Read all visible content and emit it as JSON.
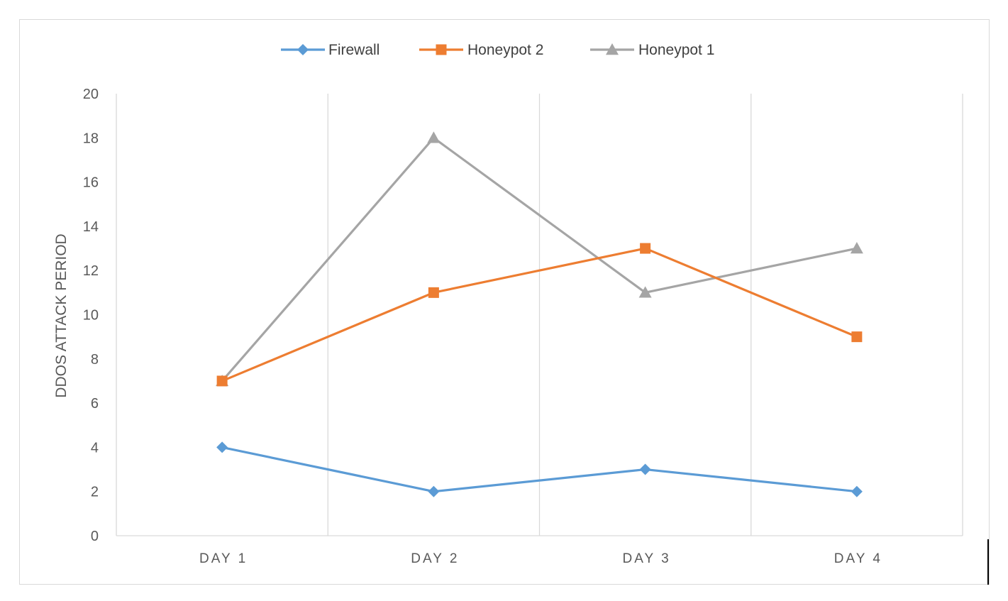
{
  "chart_data": {
    "type": "line",
    "title": "",
    "xlabel": "",
    "ylabel": "DDOS ATTACK PERIOD",
    "categories": [
      "DAY 1",
      "DAY 2",
      "DAY 3",
      "DAY 4"
    ],
    "ylim": [
      0,
      20
    ],
    "yticks": [
      0,
      2,
      4,
      6,
      8,
      10,
      12,
      14,
      16,
      18,
      20
    ],
    "grid": "vertical",
    "legend_position": "top",
    "series": [
      {
        "name": "Firewall",
        "values": [
          4,
          2,
          3,
          2
        ],
        "color": "#5b9bd5",
        "marker": "diamond"
      },
      {
        "name": "Honeypot 2",
        "values": [
          7,
          11,
          13,
          9
        ],
        "color": "#ed7d31",
        "marker": "square"
      },
      {
        "name": "Honeypot 1",
        "values": [
          7,
          18,
          11,
          13
        ],
        "color": "#a5a5a5",
        "marker": "triangle"
      }
    ]
  }
}
